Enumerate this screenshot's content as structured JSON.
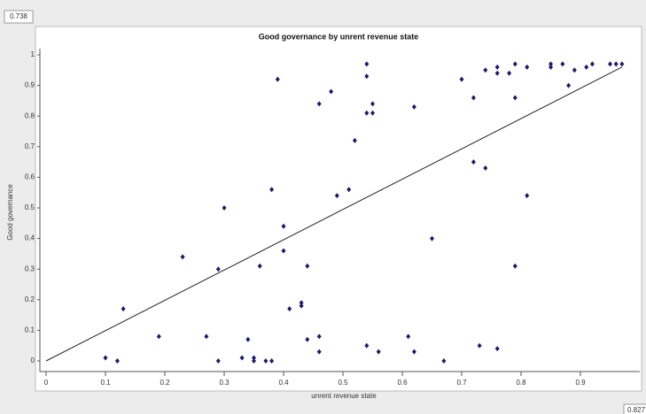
{
  "chart_data": {
    "type": "scatter",
    "title": "Good governance by unrent revenue state",
    "x_label": "unrent revenue state",
    "y_label": "Good governance",
    "corner_labels": [
      "0.738",
      "0.827"
    ],
    "color": "#1c1c6b",
    "xlim": [
      0,
      1
    ],
    "ylim": [
      0,
      1
    ],
    "xticks": [
      0,
      0.1,
      0.2,
      0.3,
      0.4,
      0.5,
      0.6,
      0.7,
      0.8,
      0.9
    ],
    "yticks": [
      0,
      0.1,
      0.2,
      0.3,
      0.4,
      0.5,
      0.6,
      0.7,
      0.8,
      0.9,
      1
    ],
    "fit_line": {
      "x": [
        0,
        0.97
      ],
      "y": [
        0,
        0.96
      ]
    },
    "x": [
      0.1,
      0.12,
      0.13,
      0.19,
      0.23,
      0.27,
      0.29,
      0.29,
      0.3,
      0.33,
      0.34,
      0.35,
      0.35,
      0.36,
      0.37,
      0.38,
      0.38,
      0.39,
      0.4,
      0.4,
      0.41,
      0.43,
      0.43,
      0.44,
      0.44,
      0.46,
      0.46,
      0.46,
      0.48,
      0.49,
      0.51,
      0.52,
      0.54,
      0.54,
      0.54,
      0.55,
      0.55,
      0.54,
      0.56,
      0.61,
      0.62,
      0.62,
      0.65,
      0.67,
      0.7,
      0.72,
      0.72,
      0.73,
      0.74,
      0.74,
      0.76,
      0.76,
      0.76,
      0.78,
      0.79,
      0.79,
      0.79,
      0.81,
      0.81,
      0.85,
      0.85,
      0.87,
      0.88,
      0.89,
      0.91,
      0.92,
      0.95,
      0.96,
      0.97
    ],
    "y": [
      0.01,
      0.0,
      0.17,
      0.08,
      0.34,
      0.08,
      0.0,
      0.3,
      0.5,
      0.01,
      0.07,
      0.01,
      0.0,
      0.31,
      0.0,
      0.56,
      0.0,
      0.92,
      0.44,
      0.36,
      0.17,
      0.19,
      0.18,
      0.31,
      0.07,
      0.08,
      0.84,
      0.03,
      0.88,
      0.54,
      0.56,
      0.72,
      0.97,
      0.93,
      0.81,
      0.81,
      0.84,
      0.05,
      0.03,
      0.08,
      0.83,
      0.03,
      0.4,
      0.0,
      0.92,
      0.86,
      0.65,
      0.05,
      0.63,
      0.95,
      0.96,
      0.94,
      0.04,
      0.94,
      0.97,
      0.86,
      0.31,
      0.96,
      0.54,
      0.97,
      0.96,
      0.97,
      0.9,
      0.95,
      0.96,
      0.97,
      0.97,
      0.97,
      0.97
    ]
  }
}
